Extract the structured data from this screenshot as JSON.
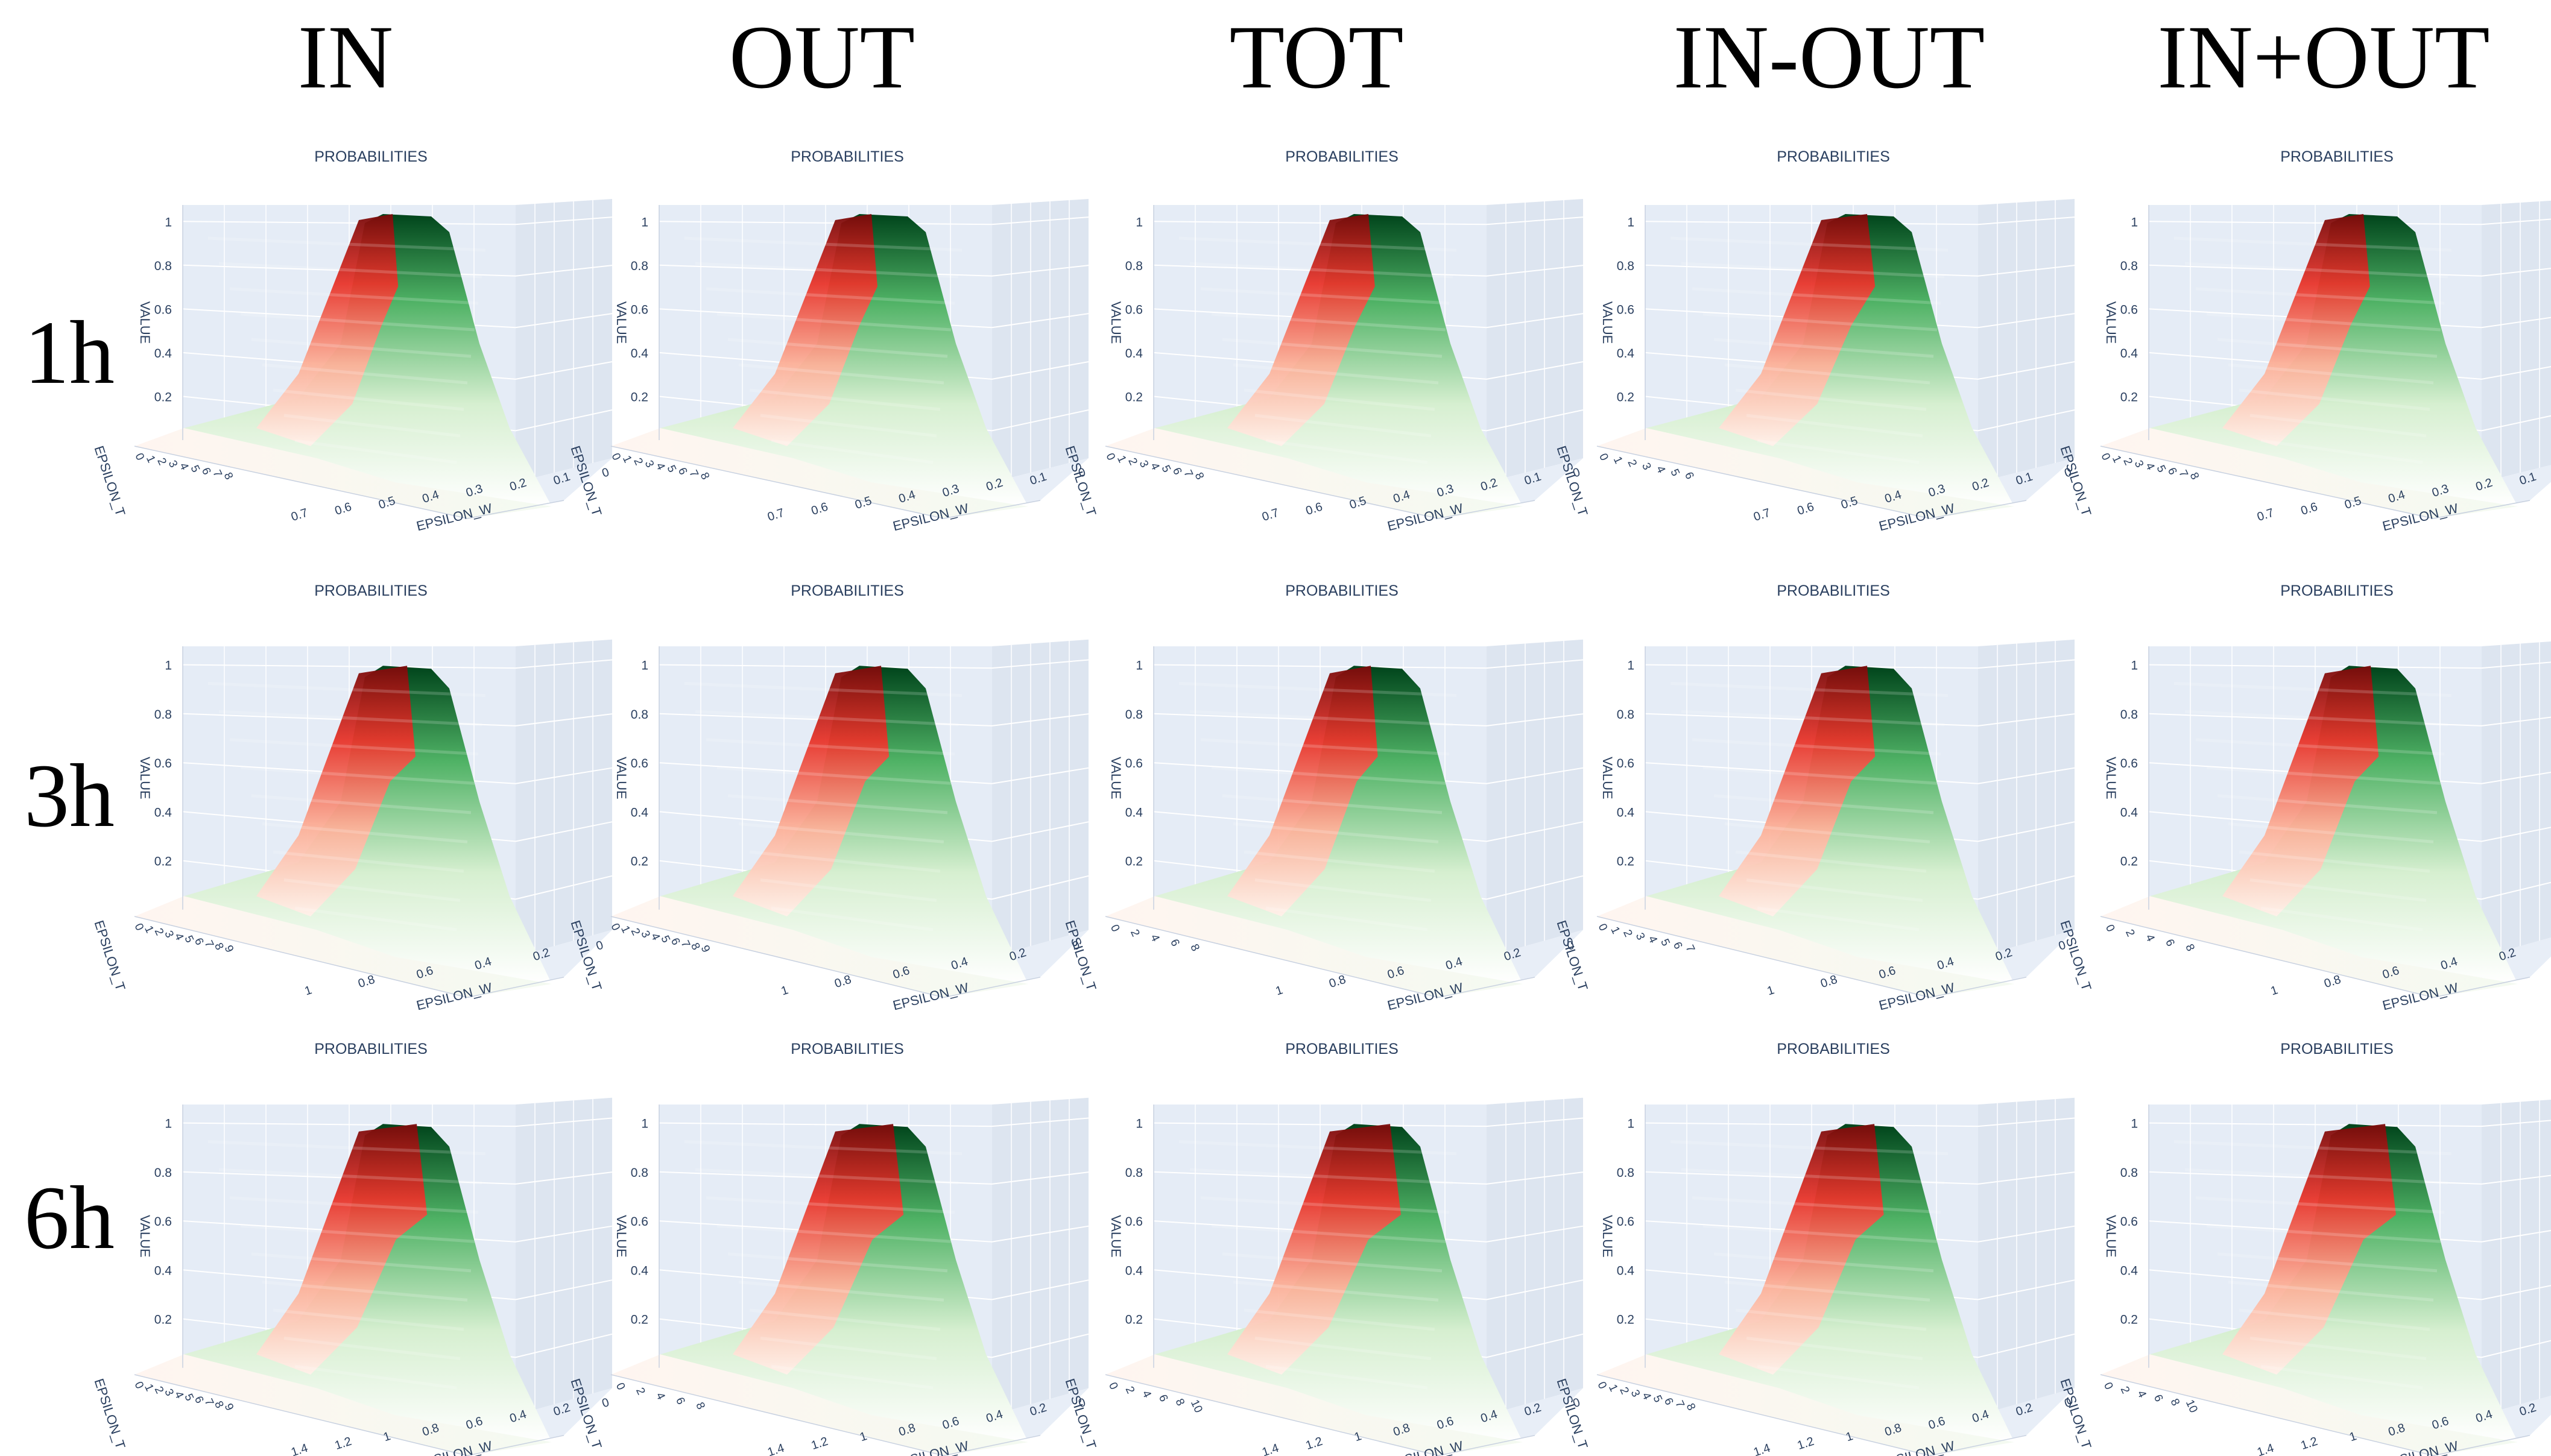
{
  "figure": {
    "columns": [
      "IN",
      "OUT",
      "TOT",
      "IN-OUT",
      "IN+OUT"
    ],
    "rows": [
      "1h",
      "3h",
      "6h"
    ]
  },
  "colors": {
    "pane": "#e5ecf6",
    "grid": "#ffffff",
    "axis_text": "#2a3f5f",
    "red_dark": "#7a0a0a",
    "green_dark": "#00441b",
    "base": "#fff5f0"
  },
  "chart_data": [
    {
      "type": "surface3d",
      "id": "IN-1h",
      "column": "IN",
      "row": "1h",
      "title": "PROBABILITIES",
      "zlabel": "VALUE",
      "xlabel": "EPSILON_W",
      "ylabel": "EPSILON_T",
      "z_ticks": [
        "0.2",
        "0.4",
        "0.6",
        "0.8",
        "1"
      ],
      "zlim": [
        0,
        1
      ],
      "x_ticks": [
        "0.7",
        "0.6",
        "0.5",
        "0.4",
        "0.3",
        "0.2",
        "0.1",
        "0"
      ],
      "y_ticks": [
        "0",
        "1",
        "2",
        "3",
        "4",
        "5",
        "6",
        "7",
        "8"
      ],
      "red_fraction": 0.2
    },
    {
      "type": "surface3d",
      "id": "OUT-1h",
      "column": "OUT",
      "row": "1h",
      "title": "PROBABILITIES",
      "zlabel": "VALUE",
      "xlabel": "EPSILON_W",
      "ylabel": "EPSILON_T",
      "z_ticks": [
        "0.2",
        "0.4",
        "0.6",
        "0.8",
        "1"
      ],
      "zlim": [
        0,
        1
      ],
      "x_ticks": [
        "0.7",
        "0.6",
        "0.5",
        "0.4",
        "0.3",
        "0.2",
        "0.1",
        "0"
      ],
      "y_ticks": [
        "0",
        "1",
        "2",
        "3",
        "4",
        "5",
        "6",
        "7",
        "8"
      ],
      "red_fraction": 0.25
    },
    {
      "type": "surface3d",
      "id": "TOT-1h",
      "column": "TOT",
      "row": "1h",
      "title": "PROBABILITIES",
      "zlabel": "VALUE",
      "xlabel": "EPSILON_W",
      "ylabel": "EPSILON_T",
      "z_ticks": [
        "0.2",
        "0.4",
        "0.6",
        "0.8",
        "1"
      ],
      "zlim": [
        0,
        1
      ],
      "x_ticks": [
        "0.7",
        "0.6",
        "0.5",
        "0.4",
        "0.3",
        "0.2",
        "0.1",
        "0"
      ],
      "y_ticks": [
        "0",
        "1",
        "2",
        "3",
        "4",
        "5",
        "6",
        "7",
        "8"
      ],
      "red_fraction": 0.3
    },
    {
      "type": "surface3d",
      "id": "IN-OUT-1h",
      "column": "IN-OUT",
      "row": "1h",
      "title": "PROBABILITIES",
      "zlabel": "VALUE",
      "xlabel": "EPSILON_W",
      "ylabel": "EPSILON_T",
      "z_ticks": [
        "0.2",
        "0.4",
        "0.6",
        "0.8",
        "1"
      ],
      "zlim": [
        0,
        1
      ],
      "x_ticks": [
        "0.7",
        "0.6",
        "0.5",
        "0.4",
        "0.3",
        "0.2",
        "0.1",
        "0"
      ],
      "y_ticks": [
        "0",
        "1",
        "2",
        "3",
        "4",
        "5",
        "6"
      ],
      "red_fraction": 0.45
    },
    {
      "type": "surface3d",
      "id": "IN+OUT-1h",
      "column": "IN+OUT",
      "row": "1h",
      "title": "PROBABILITIES",
      "zlabel": "VALUE",
      "xlabel": "EPSILON_W",
      "ylabel": "EPSILON_T",
      "z_ticks": [
        "0.2",
        "0.4",
        "0.6",
        "0.8",
        "1"
      ],
      "zlim": [
        0,
        1
      ],
      "x_ticks": [
        "0.7",
        "0.6",
        "0.5",
        "0.4",
        "0.3",
        "0.2",
        "0.1",
        "0"
      ],
      "y_ticks": [
        "0",
        "1",
        "2",
        "3",
        "4",
        "5",
        "6",
        "7",
        "8"
      ],
      "red_fraction": 0.3
    },
    {
      "type": "surface3d",
      "id": "IN-3h",
      "column": "IN",
      "row": "3h",
      "title": "PROBABILITIES",
      "zlabel": "VALUE",
      "xlabel": "EPSILON_W",
      "ylabel": "EPSILON_T",
      "z_ticks": [
        "0.2",
        "0.4",
        "0.6",
        "0.8",
        "1"
      ],
      "zlim": [
        0,
        1
      ],
      "x_ticks": [
        "1",
        "0.8",
        "0.6",
        "0.4",
        "0.2",
        "0"
      ],
      "y_ticks": [
        "0",
        "1",
        "2",
        "3",
        "4",
        "5",
        "6",
        "7",
        "8",
        "9"
      ],
      "red_fraction": 0.5
    },
    {
      "type": "surface3d",
      "id": "OUT-3h",
      "column": "OUT",
      "row": "3h",
      "title": "PROBABILITIES",
      "zlabel": "VALUE",
      "xlabel": "EPSILON_W",
      "ylabel": "EPSILON_T",
      "z_ticks": [
        "0.2",
        "0.4",
        "0.6",
        "0.8",
        "1"
      ],
      "zlim": [
        0,
        1
      ],
      "x_ticks": [
        "1",
        "0.8",
        "0.6",
        "0.4",
        "0.2",
        "0"
      ],
      "y_ticks": [
        "0",
        "1",
        "2",
        "3",
        "4",
        "5",
        "6",
        "7",
        "8",
        "9"
      ],
      "red_fraction": 0.45
    },
    {
      "type": "surface3d",
      "id": "TOT-3h",
      "column": "TOT",
      "row": "3h",
      "title": "PROBABILITIES",
      "zlabel": "VALUE",
      "xlabel": "EPSILON_W",
      "ylabel": "EPSILON_T",
      "z_ticks": [
        "0.2",
        "0.4",
        "0.6",
        "0.8",
        "1"
      ],
      "zlim": [
        0,
        1
      ],
      "x_ticks": [
        "1",
        "0.8",
        "0.6",
        "0.4",
        "0.2",
        "0"
      ],
      "y_ticks": [
        "0",
        "2",
        "4",
        "6",
        "8"
      ],
      "red_fraction": 0.35
    },
    {
      "type": "surface3d",
      "id": "IN-OUT-3h",
      "column": "IN-OUT",
      "row": "3h",
      "title": "PROBABILITIES",
      "zlabel": "VALUE",
      "xlabel": "EPSILON_W",
      "ylabel": "EPSILON_T",
      "z_ticks": [
        "0.2",
        "0.4",
        "0.6",
        "0.8",
        "1"
      ],
      "zlim": [
        0,
        1
      ],
      "x_ticks": [
        "1",
        "0.8",
        "0.6",
        "0.4",
        "0.2",
        "0"
      ],
      "y_ticks": [
        "0",
        "1",
        "2",
        "3",
        "4",
        "5",
        "6",
        "7"
      ],
      "red_fraction": 0.45
    },
    {
      "type": "surface3d",
      "id": "IN+OUT-3h",
      "column": "IN+OUT",
      "row": "3h",
      "title": "PROBABILITIES",
      "zlabel": "VALUE",
      "xlabel": "EPSILON_W",
      "ylabel": "EPSILON_T",
      "z_ticks": [
        "0.2",
        "0.4",
        "0.6",
        "0.8",
        "1"
      ],
      "zlim": [
        0,
        1
      ],
      "x_ticks": [
        "1",
        "0.8",
        "0.6",
        "0.4",
        "0.2",
        "0"
      ],
      "y_ticks": [
        "0",
        "2",
        "4",
        "6",
        "8"
      ],
      "red_fraction": 0.45
    },
    {
      "type": "surface3d",
      "id": "IN-6h",
      "column": "IN",
      "row": "6h",
      "title": "PROBABILITIES",
      "zlabel": "VALUE",
      "xlabel": "EPSILON_W",
      "ylabel": "EPSILON_T",
      "z_ticks": [
        "0.2",
        "0.4",
        "0.6",
        "0.8",
        "1"
      ],
      "zlim": [
        0,
        1
      ],
      "x_ticks": [
        "1.4",
        "1.2",
        "1",
        "0.8",
        "0.6",
        "0.4",
        "0.2",
        "0"
      ],
      "y_ticks": [
        "0",
        "1",
        "2",
        "3",
        "4",
        "5",
        "6",
        "7",
        "8",
        "9"
      ],
      "red_fraction": 0.7
    },
    {
      "type": "surface3d",
      "id": "OUT-6h",
      "column": "OUT",
      "row": "6h",
      "title": "PROBABILITIES",
      "zlabel": "VALUE",
      "xlabel": "EPSILON_W",
      "ylabel": "EPSILON_T",
      "z_ticks": [
        "0.2",
        "0.4",
        "0.6",
        "0.8",
        "1"
      ],
      "zlim": [
        0,
        1
      ],
      "x_ticks": [
        "1.4",
        "1.2",
        "1",
        "0.8",
        "0.6",
        "0.4",
        "0.2",
        "0"
      ],
      "y_ticks": [
        "0",
        "2",
        "4",
        "6",
        "8"
      ],
      "red_fraction": 0.7
    },
    {
      "type": "surface3d",
      "id": "TOT-6h",
      "column": "TOT",
      "row": "6h",
      "title": "PROBABILITIES",
      "zlabel": "VALUE",
      "xlabel": "EPSILON_W",
      "ylabel": "EPSILON_T",
      "z_ticks": [
        "0.2",
        "0.4",
        "0.6",
        "0.8",
        "1"
      ],
      "zlim": [
        0,
        1
      ],
      "x_ticks": [
        "1.4",
        "1.2",
        "1",
        "0.8",
        "0.6",
        "0.4",
        "0.2",
        "0"
      ],
      "y_ticks": [
        "0",
        "2",
        "4",
        "6",
        "8",
        "10"
      ],
      "red_fraction": 0.75
    },
    {
      "type": "surface3d",
      "id": "IN-OUT-6h",
      "column": "IN-OUT",
      "row": "6h",
      "title": "PROBABILITIES",
      "zlabel": "VALUE",
      "xlabel": "EPSILON_W",
      "ylabel": "EPSILON_T",
      "z_ticks": [
        "0.2",
        "0.4",
        "0.6",
        "0.8",
        "1"
      ],
      "zlim": [
        0,
        1
      ],
      "x_ticks": [
        "1.4",
        "1.2",
        "1",
        "0.8",
        "0.6",
        "0.4",
        "0.2",
        "0"
      ],
      "y_ticks": [
        "0",
        "1",
        "2",
        "3",
        "4",
        "5",
        "6",
        "7",
        "8"
      ],
      "red_fraction": 0.6
    },
    {
      "type": "surface3d",
      "id": "IN+OUT-6h",
      "column": "IN+OUT",
      "row": "6h",
      "title": "PROBABILITIES",
      "zlabel": "VALUE",
      "xlabel": "EPSILON_W",
      "ylabel": "EPSILON_T",
      "z_ticks": [
        "0.2",
        "0.4",
        "0.6",
        "0.8",
        "1"
      ],
      "zlim": [
        0,
        1
      ],
      "x_ticks": [
        "1.4",
        "1.2",
        "1",
        "0.8",
        "0.6",
        "0.4",
        "0.2",
        "0"
      ],
      "y_ticks": [
        "0",
        "2",
        "4",
        "6",
        "8",
        "10"
      ],
      "red_fraction": 0.75
    }
  ]
}
